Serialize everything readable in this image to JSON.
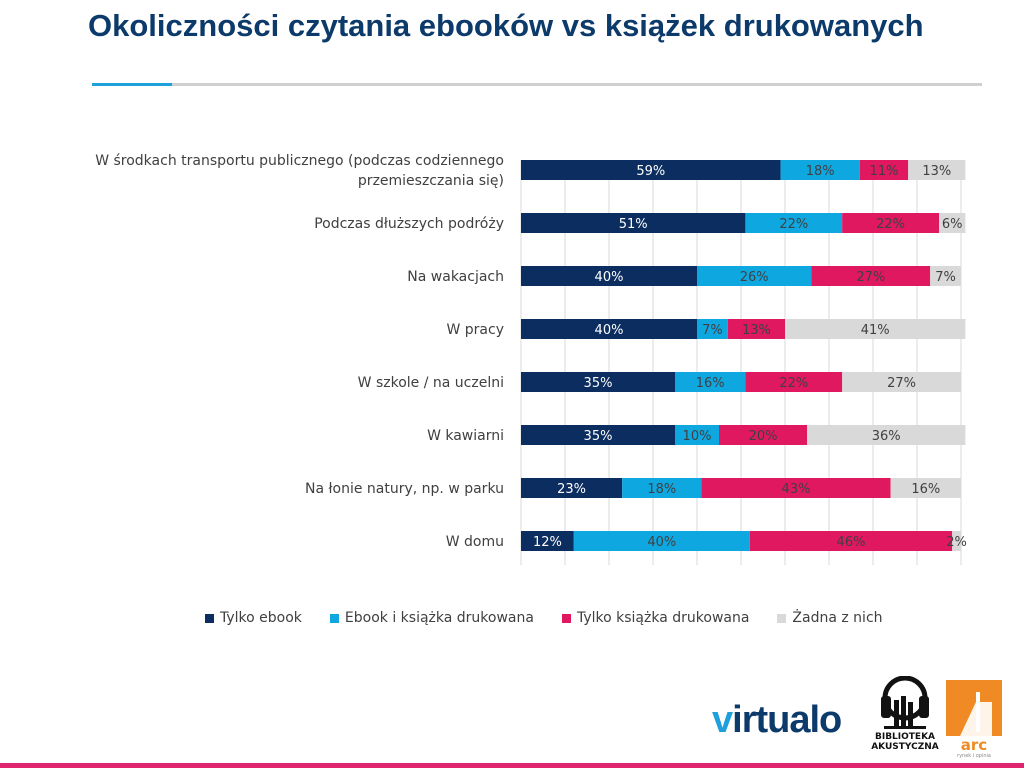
{
  "page": {
    "title": "Okoliczności czytania ebooków vs książek drukowanych"
  },
  "colors": {
    "series": [
      "#0c2d5f",
      "#0ea7e0",
      "#e0185f",
      "#d9d9d9"
    ],
    "label_on_dark": "#ffffff",
    "label_on_light": "#404040",
    "title": "#0c3a6b",
    "accent": "#e0256f"
  },
  "chart_data": {
    "type": "bar",
    "orientation": "horizontal",
    "stacked": "percent",
    "categories": [
      "W środkach transportu publicznego (podczas codziennego przemieszczania się)",
      "Podczas dłuższych podróży",
      "Na wakacjach",
      "W pracy",
      "W szkole / na uczelni",
      "W kawiarni",
      "Na łonie natury, np. w parku",
      "W domu"
    ],
    "series": [
      {
        "name": "Tylko ebook",
        "values": [
          59,
          51,
          40,
          40,
          35,
          35,
          23,
          12
        ]
      },
      {
        "name": "Ebook i książka drukowana",
        "values": [
          18,
          22,
          26,
          7,
          16,
          10,
          18,
          40
        ]
      },
      {
        "name": "Tylko książka drukowana",
        "values": [
          11,
          22,
          27,
          13,
          22,
          20,
          43,
          46
        ]
      },
      {
        "name": "Żadna z nich",
        "values": [
          13,
          6,
          7,
          41,
          27,
          36,
          16,
          2
        ]
      }
    ],
    "value_suffix": "%",
    "xlim": [
      0,
      100
    ],
    "grid": true,
    "legend_position": "bottom"
  },
  "logos": {
    "virtualo": "virtualo",
    "biblioteka": "BIBLIOTEKA AKUSTYCZNA",
    "arc": "arc",
    "arc_tagline": "rynek i opinia"
  }
}
